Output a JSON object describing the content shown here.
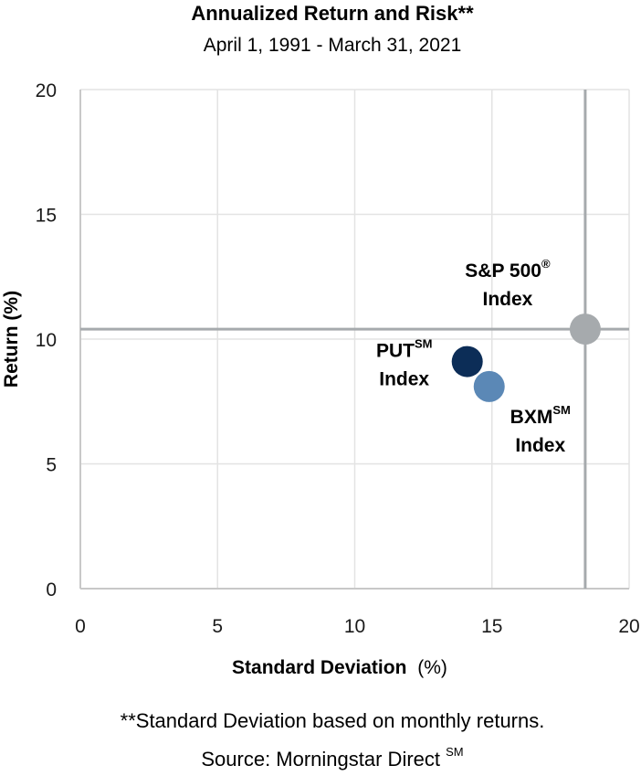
{
  "chart_data": {
    "type": "scatter",
    "title": "Annualized Return and Risk**",
    "subtitle": "April 1, 1991 - March 31, 2021",
    "xlabel": "Standard Deviation",
    "xlabel_unit": "(%)",
    "ylabel": "Return (%)",
    "xlim": [
      0,
      20
    ],
    "ylim": [
      0,
      20
    ],
    "xticks": [
      "0",
      "5",
      "10",
      "15",
      "20"
    ],
    "yticks": [
      "0",
      "5",
      "10",
      "15",
      "20"
    ],
    "grid": true,
    "reference_lines": {
      "x": 18.4,
      "y": 10.4
    },
    "points": [
      {
        "name_main": "PUT",
        "name_sup": "SM",
        "name_line2": "Index",
        "x": 14.1,
        "y": 9.1,
        "color": "#0c2d57"
      },
      {
        "name_main": "BXM",
        "name_sup": "SM",
        "name_line2": "Index",
        "x": 14.9,
        "y": 8.1,
        "color": "#5b88b6"
      },
      {
        "name_main": "S&P 500",
        "name_sup": "®",
        "name_line2": "Index",
        "x": 18.4,
        "y": 10.4,
        "color": "#a6aaad"
      }
    ],
    "footnote_line1": "**Standard Deviation based on monthly returns.",
    "footnote_line2_main": "Source: Morningstar Direct",
    "footnote_line2_sup": "SM"
  },
  "colors": {
    "gridline": "#e3e3e3",
    "axis_line": "#c8c8c8",
    "reference_line": "#a6aaad",
    "text": "#1a1a1a"
  }
}
